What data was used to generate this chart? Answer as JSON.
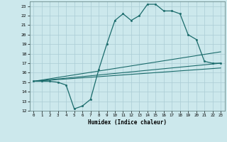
{
  "xlabel": "Humidex (Indice chaleur)",
  "background_color": "#cce8ec",
  "grid_color": "#aaccd4",
  "line_color": "#1a6b6b",
  "xlim": [
    -0.5,
    23.5
  ],
  "ylim": [
    12,
    23.5
  ],
  "yticks": [
    12,
    13,
    14,
    15,
    16,
    17,
    18,
    19,
    20,
    21,
    22,
    23
  ],
  "xticks": [
    0,
    1,
    2,
    3,
    4,
    5,
    6,
    7,
    8,
    9,
    10,
    11,
    12,
    13,
    14,
    15,
    16,
    17,
    18,
    19,
    20,
    21,
    22,
    23
  ],
  "curve1_x": [
    0,
    1,
    2,
    3,
    4,
    5,
    6,
    7,
    8,
    9,
    10,
    11,
    12,
    13,
    14,
    15,
    16,
    17,
    18,
    19,
    20,
    21,
    22,
    23
  ],
  "curve1_y": [
    15.1,
    15.1,
    15.1,
    15.0,
    14.7,
    12.2,
    12.5,
    13.2,
    16.3,
    19.0,
    21.5,
    22.2,
    21.5,
    22.0,
    23.2,
    23.2,
    22.5,
    22.5,
    22.2,
    20.0,
    19.5,
    17.2,
    17.0,
    17.0
  ],
  "curve2_x": [
    0,
    23
  ],
  "curve2_y": [
    15.1,
    17.0
  ],
  "curve3_x": [
    0,
    23
  ],
  "curve3_y": [
    15.1,
    16.5
  ],
  "curve4_x": [
    0,
    23
  ],
  "curve4_y": [
    15.1,
    18.2
  ]
}
